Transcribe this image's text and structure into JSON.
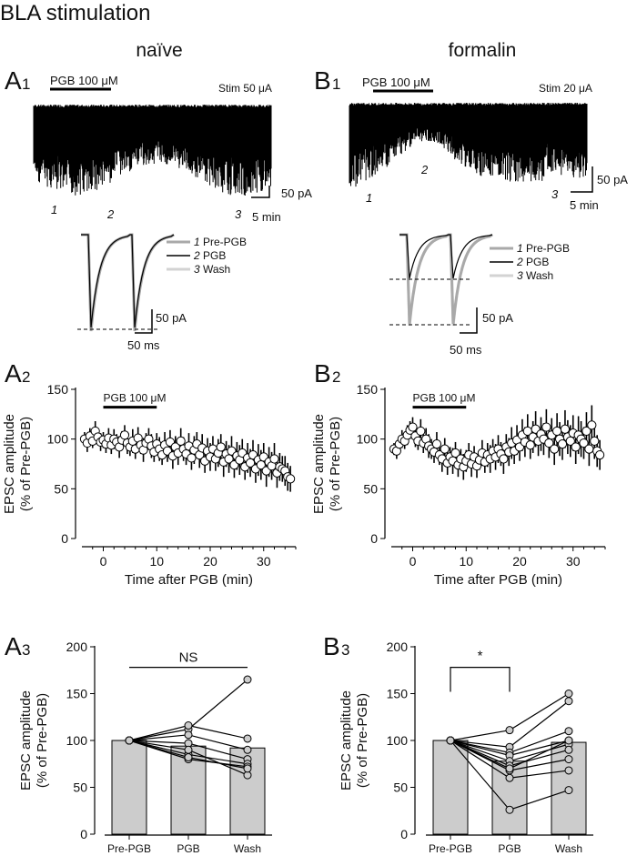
{
  "figure_title": "BLA stimulation",
  "column_titles": {
    "left": "naïve",
    "right": "formalin"
  },
  "panel_labels": {
    "A1": {
      "letter": "A",
      "num": "1"
    },
    "B1": {
      "letter": "B",
      "num": "1"
    },
    "A2": {
      "letter": "A",
      "num": "2"
    },
    "B2": {
      "letter": "B",
      "num": "2"
    },
    "A3": {
      "letter": "A",
      "num": "3"
    },
    "B3": {
      "letter": "B",
      "num": "3"
    }
  },
  "colors": {
    "trace": "#000000",
    "prepgb": "#a9a9a9",
    "wash": "#d3d3d3",
    "bar": "#cccccc"
  },
  "traces": {
    "A1": {
      "drug_label": "PGB 100 μM",
      "stim_label": "Stim 50 μA",
      "scale_y": "50 pA",
      "scale_x": "5 min",
      "timepoints": [
        "1",
        "2",
        "3"
      ]
    },
    "B1": {
      "drug_label": "PGB 100 μM",
      "stim_label": "Stim 20 μA",
      "scale_y": "50 pA",
      "scale_x": "5 min",
      "timepoints": [
        "1",
        "2",
        "3"
      ]
    }
  },
  "insets": {
    "A1": {
      "scale_y": "50 pA",
      "scale_x": "50 ms"
    },
    "B1": {
      "scale_y": "50 pA",
      "scale_x": "50 ms"
    }
  },
  "legend": [
    {
      "num": "1",
      "label": "Pre-PGB",
      "color": "#a9a9a9"
    },
    {
      "num": "2",
      "label": "PGB",
      "color": "#000000"
    },
    {
      "num": "3",
      "label": "Wash",
      "color": "#d3d3d3"
    }
  ],
  "chart_data": [
    {
      "id": "A2",
      "type": "scatter",
      "xlabel": "Time after PGB (min)",
      "ylabel": [
        "EPSC amplitude",
        "(% of Pre-PGB)"
      ],
      "xlim": [
        -4,
        36
      ],
      "ylim": [
        0,
        150
      ],
      "xticks": [
        0,
        10,
        20,
        30
      ],
      "yticks": [
        0,
        50,
        100,
        150
      ],
      "drug_bar": {
        "label": "PGB 100 μM",
        "start": 0,
        "end": 10
      },
      "x": [
        -3.5,
        -3,
        -2.5,
        -2,
        -1.5,
        -1,
        -0.5,
        0,
        0.5,
        1,
        1.5,
        2,
        2.5,
        3,
        3.5,
        4,
        4.5,
        5,
        5.5,
        6,
        6.5,
        7,
        7.5,
        8,
        8.5,
        9,
        9.5,
        10,
        10.5,
        11,
        11.5,
        12,
        12.5,
        13,
        13.5,
        14,
        14.5,
        15,
        15.5,
        16,
        16.5,
        17,
        17.5,
        18,
        18.5,
        19,
        19.5,
        20,
        20.5,
        21,
        21.5,
        22,
        22.5,
        23,
        23.5,
        24,
        24.5,
        25,
        25.5,
        26,
        26.5,
        27,
        27.5,
        28,
        28.5,
        29,
        29.5,
        30,
        30.5,
        31,
        31.5,
        32,
        32.5,
        33,
        33.5,
        34,
        34.5,
        35
      ],
      "y": [
        100,
        96,
        103,
        98,
        108,
        102,
        97,
        99,
        95,
        101,
        94,
        100,
        97,
        92,
        99,
        104,
        96,
        92,
        98,
        90,
        101,
        94,
        89,
        96,
        100,
        93,
        87,
        95,
        90,
        84,
        94,
        88,
        97,
        83,
        92,
        86,
        98,
        90,
        85,
        93,
        81,
        89,
        95,
        84,
        91,
        78,
        88,
        82,
        90,
        80,
        86,
        92,
        77,
        85,
        80,
        88,
        74,
        83,
        79,
        86,
        72,
        81,
        76,
        84,
        70,
        79,
        74,
        82,
        68,
        77,
        73,
        80,
        66,
        72,
        70,
        68,
        62,
        60
      ],
      "err": [
        7,
        9,
        8,
        7,
        10,
        8,
        9,
        8,
        9,
        10,
        9,
        10,
        8,
        11,
        9,
        10,
        11,
        9,
        12,
        10,
        11,
        9,
        12,
        10,
        11,
        12,
        10,
        11,
        12,
        10,
        13,
        11,
        12,
        13,
        11,
        12,
        13,
        12,
        11,
        13,
        12,
        14,
        12,
        13,
        14,
        12,
        13,
        14,
        13,
        12,
        14,
        13,
        15,
        13,
        14,
        15,
        13,
        14,
        15,
        14,
        13,
        15,
        14,
        15,
        14,
        16,
        15,
        14,
        16,
        15,
        14,
        16,
        15,
        14,
        13,
        15,
        14,
        13
      ]
    },
    {
      "id": "B2",
      "type": "scatter",
      "xlabel": "Time after PGB (min)",
      "ylabel": [
        "EPSC amplitude",
        "(% of Pre-PGB)"
      ],
      "xlim": [
        -4,
        36
      ],
      "ylim": [
        0,
        150
      ],
      "xticks": [
        0,
        10,
        20,
        30
      ],
      "yticks": [
        0,
        50,
        100,
        150
      ],
      "drug_bar": {
        "label": "PGB 100 μM",
        "start": 0,
        "end": 10
      },
      "x": [
        -3.5,
        -3,
        -2.5,
        -2,
        -1.5,
        -1,
        -0.5,
        0,
        0.5,
        1,
        1.5,
        2,
        2.5,
        3,
        3.5,
        4,
        4.5,
        5,
        5.5,
        6,
        6.5,
        7,
        7.5,
        8,
        8.5,
        9,
        9.5,
        10,
        10.5,
        11,
        11.5,
        12,
        12.5,
        13,
        13.5,
        14,
        14.5,
        15,
        15.5,
        16,
        16.5,
        17,
        17.5,
        18,
        18.5,
        19,
        19.5,
        20,
        20.5,
        21,
        21.5,
        22,
        22.5,
        23,
        23.5,
        24,
        24.5,
        25,
        25.5,
        26,
        26.5,
        27,
        27.5,
        28,
        28.5,
        29,
        29.5,
        30,
        30.5,
        31,
        31.5,
        32,
        32.5,
        33,
        33.5,
        34,
        34.5,
        35
      ],
      "y": [
        90,
        88,
        95,
        100,
        98,
        104,
        109,
        112,
        103,
        98,
        108,
        96,
        100,
        93,
        90,
        87,
        95,
        84,
        80,
        90,
        76,
        82,
        78,
        86,
        74,
        80,
        72,
        78,
        84,
        75,
        82,
        73,
        79,
        86,
        77,
        84,
        80,
        88,
        82,
        90,
        85,
        80,
        92,
        87,
        96,
        88,
        99,
        92,
        104,
        97,
        108,
        94,
        102,
        110,
        98,
        105,
        100,
        112,
        96,
        104,
        90,
        108,
        100,
        95,
        110,
        102,
        98,
        106,
        92,
        104,
        100,
        96,
        108,
        90,
        114,
        98,
        88,
        84
      ],
      "err": [
        6,
        8,
        7,
        9,
        8,
        10,
        9,
        10,
        11,
        9,
        12,
        10,
        11,
        12,
        10,
        11,
        12,
        10,
        13,
        11,
        12,
        10,
        13,
        11,
        12,
        10,
        13,
        11,
        12,
        13,
        11,
        12,
        10,
        13,
        11,
        12,
        14,
        12,
        13,
        14,
        12,
        15,
        13,
        14,
        16,
        13,
        15,
        14,
        16,
        15,
        17,
        14,
        16,
        18,
        15,
        17,
        16,
        18,
        15,
        17,
        16,
        18,
        17,
        16,
        19,
        17,
        16,
        18,
        17,
        19,
        18,
        16,
        19,
        17,
        20,
        18,
        16,
        15
      ]
    },
    {
      "id": "A3",
      "type": "bar",
      "categories": [
        "Pre-PGB",
        "PGB",
        "Wash"
      ],
      "values": [
        100,
        94,
        92
      ],
      "ylabel": [
        "EPSC amplitude",
        "(% of Pre-PGB)"
      ],
      "ylim": [
        0,
        200
      ],
      "yticks": [
        0,
        50,
        100,
        150,
        200
      ],
      "annotation": {
        "text": "NS",
        "from": 0,
        "to": 2
      },
      "paired": [
        [
          100,
          112,
          165
        ],
        [
          100,
          116,
          102
        ],
        [
          100,
          106,
          90
        ],
        [
          100,
          97,
          80
        ],
        [
          100,
          85,
          75
        ],
        [
          100,
          80,
          72
        ],
        [
          100,
          90,
          63
        ],
        [
          100,
          82,
          70
        ]
      ]
    },
    {
      "id": "B3",
      "type": "bar",
      "categories": [
        "Pre-PGB",
        "PGB",
        "Wash"
      ],
      "values": [
        100,
        78,
        98
      ],
      "ylabel": [
        "EPSC amplitude",
        "(% of Pre-PGB)"
      ],
      "ylim": [
        0,
        200
      ],
      "yticks": [
        0,
        50,
        100,
        150,
        200
      ],
      "annotation": {
        "text": "*",
        "from": 0,
        "to": 1
      },
      "paired": [
        [
          100,
          111,
          150
        ],
        [
          100,
          93,
          142
        ],
        [
          100,
          87,
          110
        ],
        [
          100,
          84,
          100
        ],
        [
          100,
          78,
          96
        ],
        [
          100,
          73,
          90
        ],
        [
          100,
          68,
          80
        ],
        [
          100,
          60,
          68
        ],
        [
          100,
          26,
          47
        ],
        [
          100,
          70,
          100
        ]
      ]
    }
  ]
}
